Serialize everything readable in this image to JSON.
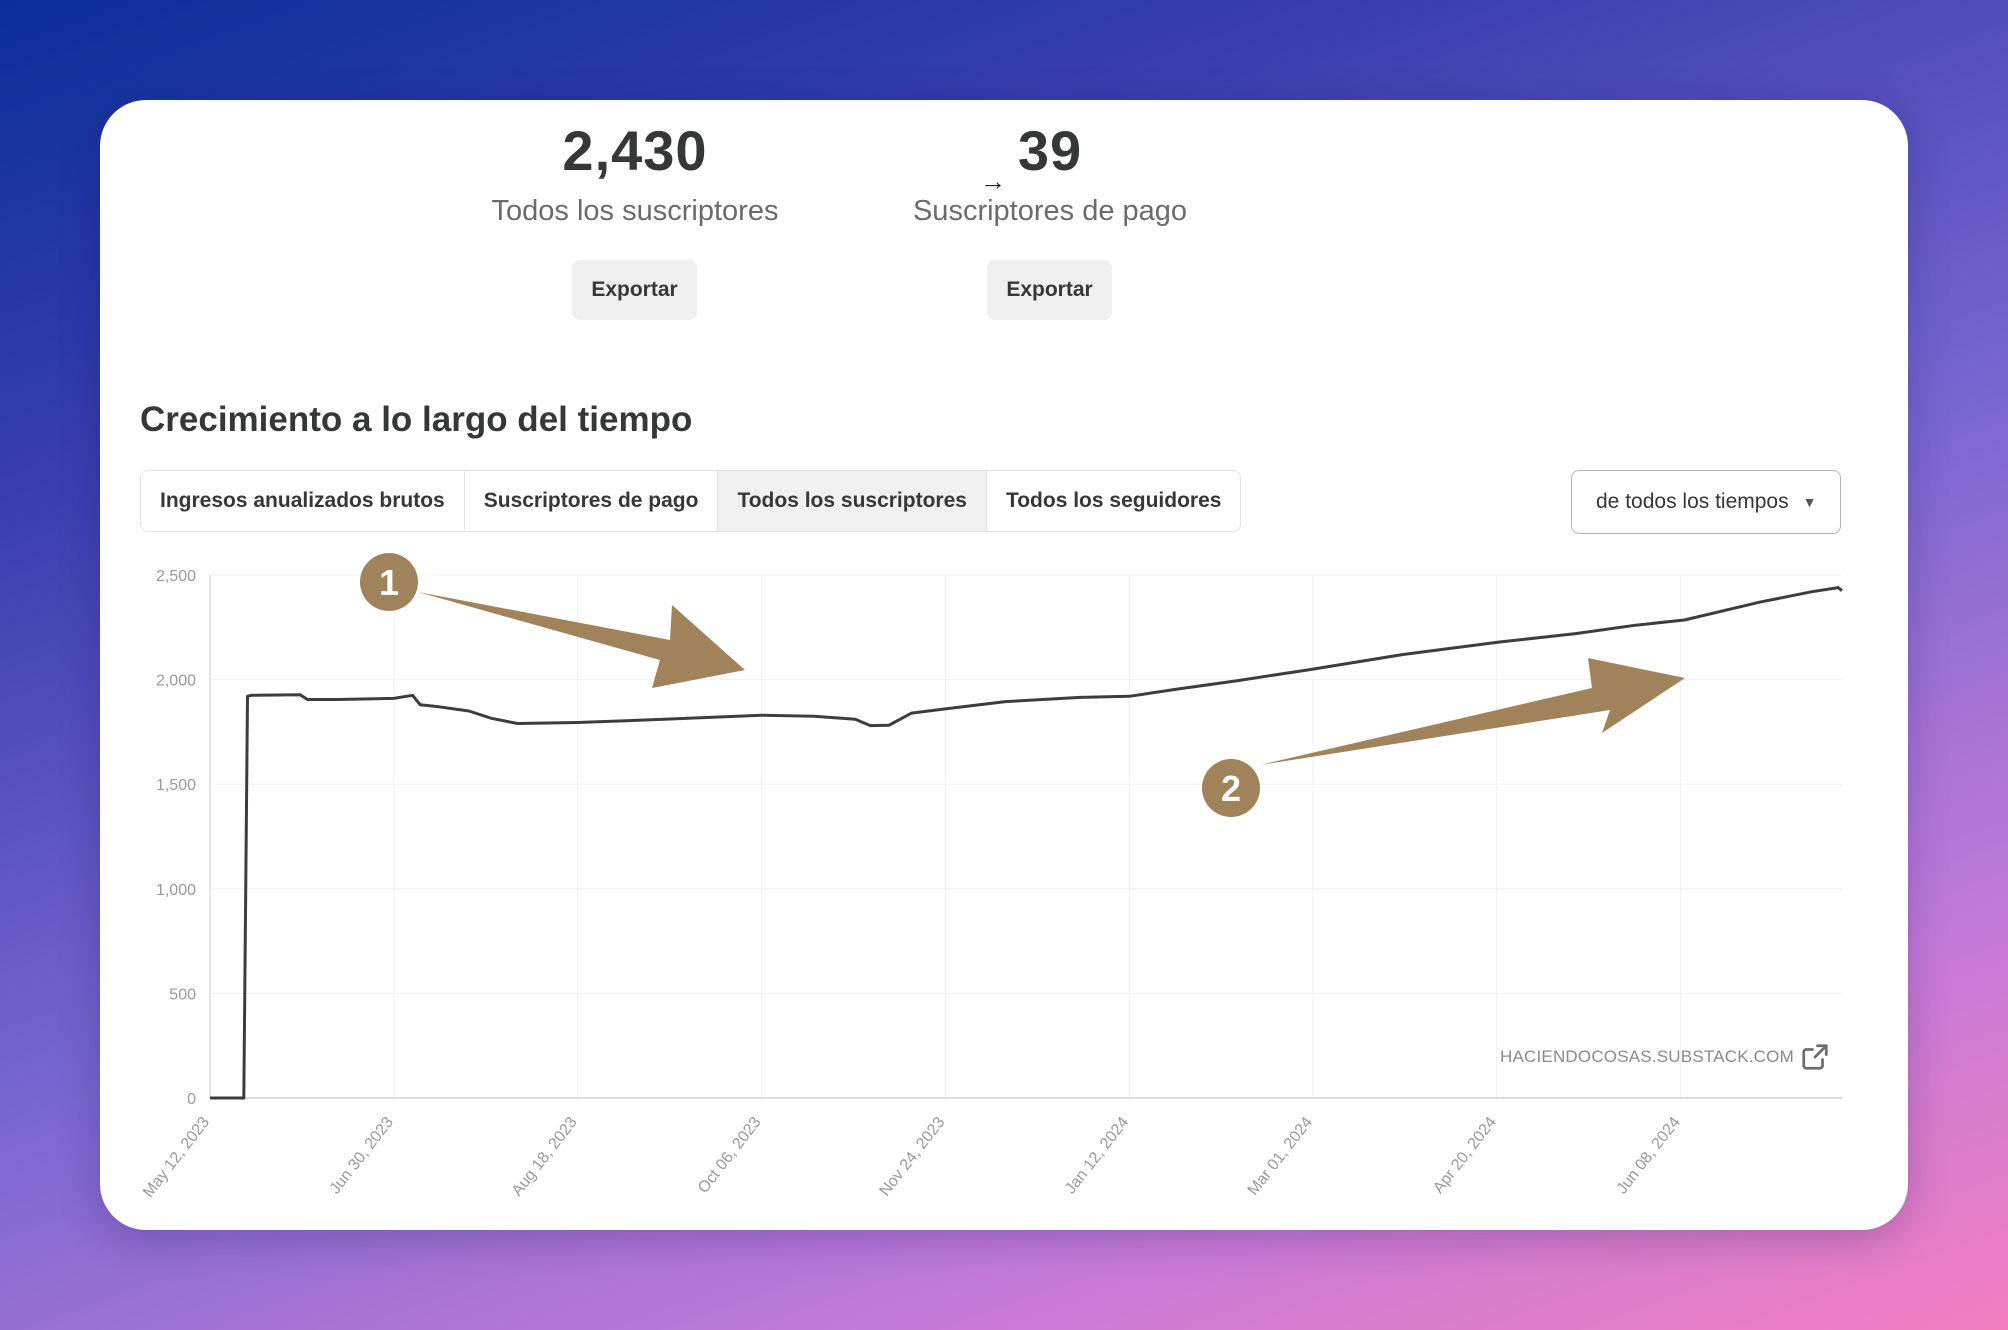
{
  "stats": {
    "all": {
      "value": "2,430",
      "label": "Todos los suscriptores",
      "export_label": "Exportar"
    },
    "paid": {
      "value": "39",
      "label": "Suscriptores de pago",
      "export_label": "Exportar"
    }
  },
  "section_title": "Crecimiento a lo largo del tiempo",
  "tabs": [
    {
      "label": "Ingresos anualizados brutos"
    },
    {
      "label": "Suscriptores de pago"
    },
    {
      "label": "Todos los suscriptores"
    },
    {
      "label": "Todos los seguidores"
    }
  ],
  "active_tab": 2,
  "range_select": {
    "value": "de todos los tiempos"
  },
  "watermark": {
    "text": "HACIENDOCOSAS.SUBSTACK.COM"
  },
  "annotations": [
    {
      "label": "1"
    },
    {
      "label": "2"
    }
  ],
  "colors": {
    "line": "#3d3d3d",
    "annotation": "#a1835b",
    "grid": "#efefef"
  },
  "chart_data": {
    "type": "line",
    "title": "",
    "xlabel": "",
    "ylabel": "",
    "x_ticks": [
      "May 12, 2023",
      "Jun 30, 2023",
      "Aug 18, 2023",
      "Oct 06, 2023",
      "Nov 24, 2023",
      "Jan 12, 2024",
      "Mar 01, 2024",
      "Apr 20, 2024",
      "Jun 08, 2024"
    ],
    "y_ticks": [
      "0",
      "500",
      "1,000",
      "1,500",
      "2,000",
      "2,500"
    ],
    "ylim": [
      0,
      2500
    ],
    "xlim": [
      "2023-05-12",
      "2024-07-20"
    ],
    "grid": true,
    "series": [
      {
        "x": [
          "2023-05-12",
          "2023-05-21",
          "2023-05-22",
          "2023-05-23",
          "2023-06-05",
          "2023-06-07",
          "2023-06-15",
          "2023-06-30",
          "2023-07-05",
          "2023-07-07",
          "2023-07-12",
          "2023-07-20",
          "2023-07-26",
          "2023-08-02",
          "2023-08-18",
          "2023-09-10",
          "2023-10-06",
          "2023-10-20",
          "2023-10-31",
          "2023-11-04",
          "2023-11-09",
          "2023-11-15",
          "2023-11-24",
          "2023-12-10",
          "2023-12-30",
          "2024-01-12",
          "2024-01-25",
          "2024-02-10",
          "2024-03-01",
          "2024-03-25",
          "2024-04-20",
          "2024-05-10",
          "2024-05-26",
          "2024-06-08",
          "2024-06-28",
          "2024-07-12",
          "2024-07-19",
          "2024-07-20"
        ],
        "y": [
          0,
          0,
          1920,
          1925,
          1928,
          1905,
          1905,
          1910,
          1925,
          1880,
          1870,
          1850,
          1815,
          1790,
          1795,
          1810,
          1830,
          1825,
          1810,
          1780,
          1782,
          1840,
          1860,
          1895,
          1915,
          1920,
          1955,
          1995,
          2050,
          2120,
          2180,
          2220,
          2260,
          2285,
          2370,
          2420,
          2440,
          2425
        ]
      }
    ]
  }
}
